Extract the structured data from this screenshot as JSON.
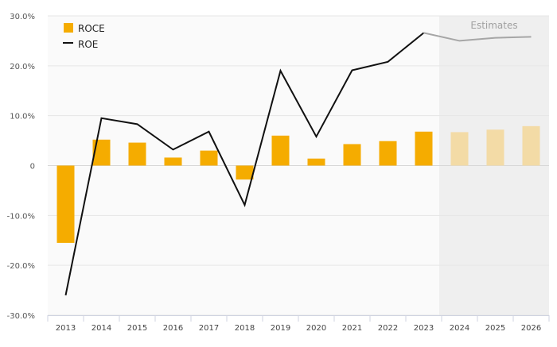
{
  "chart_data": {
    "type": "bar",
    "categories": [
      "2013",
      "2014",
      "2015",
      "2016",
      "2017",
      "2018",
      "2019",
      "2020",
      "2021",
      "2022",
      "2023",
      "2024",
      "2025",
      "2026"
    ],
    "series": [
      {
        "name": "ROCE",
        "type": "bar",
        "color": "#f5ac00",
        "estimate_color": "#f3dba6",
        "values": [
          -15.5,
          5.2,
          4.6,
          1.6,
          3.0,
          -2.8,
          6.0,
          1.4,
          4.3,
          4.9,
          6.8,
          6.7,
          7.2,
          7.9
        ]
      },
      {
        "name": "ROE",
        "type": "line",
        "color": "#111111",
        "estimate_color": "#a6a6a6",
        "values": [
          -26.0,
          9.5,
          8.3,
          3.2,
          6.8,
          -7.9,
          19.0,
          5.8,
          19.1,
          20.8,
          26.6,
          25.0,
          25.6,
          25.8
        ]
      }
    ],
    "estimates": {
      "label": "Estimates",
      "first_category": "2024",
      "shade_color": "#efefef"
    },
    "y_axis": {
      "ylim": [
        -30,
        30
      ],
      "ticks": [
        -30,
        -20,
        -10,
        0,
        10,
        20,
        30
      ],
      "tick_labels": [
        "-30.0%",
        "-20.0%",
        "-10.0%",
        "0",
        "10.0%",
        "20.0%",
        "30.0%"
      ]
    },
    "grid": true,
    "legend": {
      "position": "top-left"
    }
  }
}
